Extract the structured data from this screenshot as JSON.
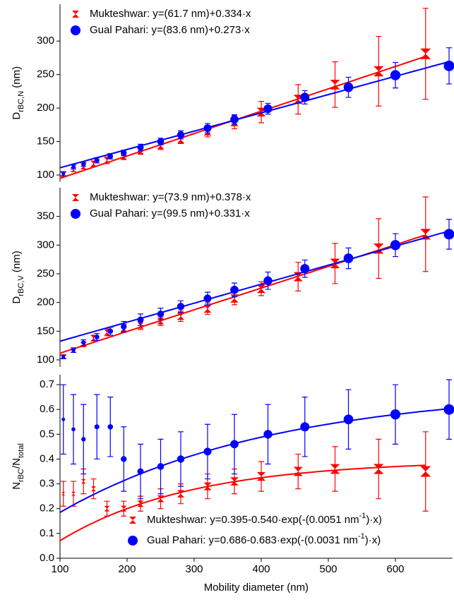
{
  "chart_data": [
    {
      "type": "scatter",
      "ylabel_parts": [
        "D",
        "rBC,N",
        " (nm)"
      ],
      "xlim": [
        100,
        685
      ],
      "ylim": [
        90,
        355
      ],
      "yticks": [
        100,
        150,
        200,
        250,
        300
      ],
      "legend": "upper left",
      "series": [
        {
          "name": "Mukteshwar",
          "legend_parts": [
            "Mukteshwar: y=(61.7 nm)+0.334·x"
          ],
          "color": "#ff0000",
          "marker": "bowtie",
          "fit": {
            "intercept": 61.7,
            "slope": 0.334
          },
          "x": [
            105,
            120,
            135,
            150,
            170,
            195,
            220,
            250,
            280,
            320,
            360,
            400,
            455,
            510,
            575,
            645
          ],
          "values": [
            101,
            108,
            113,
            117,
            122,
            128,
            136,
            144,
            153,
            165,
            179,
            194,
            213,
            235,
            255,
            281
          ],
          "errors": [
            3,
            3,
            4,
            4,
            5,
            5,
            5,
            6,
            6,
            8,
            10,
            16,
            22,
            34,
            52,
            68
          ]
        },
        {
          "name": "Gual Pahari",
          "legend_parts": [
            "Gual Pahari: y=(83.6 nm)+0.273·x"
          ],
          "color": "#0000ff",
          "marker": "circle",
          "fit": {
            "intercept": 83.6,
            "slope": 0.273
          },
          "x": [
            105,
            120,
            135,
            155,
            175,
            195,
            220,
            250,
            280,
            320,
            360,
            410,
            465,
            530,
            600,
            680
          ],
          "values": [
            102,
            112,
            116,
            122,
            128,
            133,
            141,
            150,
            160,
            170,
            183,
            199,
            216,
            231,
            249,
            263
          ],
          "errors": [
            3,
            3,
            3,
            4,
            4,
            4,
            5,
            5,
            6,
            7,
            7,
            8,
            10,
            15,
            19,
            27
          ]
        }
      ]
    },
    {
      "type": "scatter",
      "ylabel_parts": [
        "D",
        "rBC,V",
        " (nm)"
      ],
      "xlim": [
        100,
        685
      ],
      "ylim": [
        88,
        400
      ],
      "yticks": [
        100,
        150,
        200,
        250,
        300,
        350
      ],
      "legend": "upper left",
      "series": [
        {
          "name": "Mukteshwar",
          "legend_parts": [
            "Mukteshwar: y=(73.9 nm)+0.378·x"
          ],
          "color": "#ff0000",
          "marker": "bowtie",
          "fit": {
            "intercept": 73.9,
            "slope": 0.378
          },
          "x": [
            105,
            120,
            135,
            150,
            170,
            195,
            220,
            250,
            280,
            320,
            360,
            400,
            455,
            510,
            575,
            645
          ],
          "values": [
            106,
            116,
            127,
            138,
            148,
            155,
            160,
            168,
            176,
            189,
            207,
            224,
            245,
            268,
            294,
            319
          ],
          "errors": [
            3,
            3,
            4,
            5,
            6,
            7,
            7,
            8,
            9,
            10,
            11,
            12,
            25,
            35,
            52,
            65
          ]
        },
        {
          "name": "Gual Pahari",
          "legend_parts": [
            "Gual Pahari: y=(99.5 nm)+0.331·x"
          ],
          "color": "#0000ff",
          "marker": "circle",
          "fit": {
            "intercept": 99.5,
            "slope": 0.331
          },
          "x": [
            105,
            120,
            135,
            155,
            175,
            195,
            220,
            250,
            280,
            320,
            360,
            410,
            465,
            530,
            600,
            680
          ],
          "values": [
            105,
            117,
            130,
            140,
            150,
            158,
            170,
            180,
            193,
            207,
            222,
            238,
            259,
            277,
            300,
            319
          ],
          "errors": [
            3,
            4,
            5,
            6,
            7,
            9,
            10,
            10,
            10,
            11,
            12,
            15,
            15,
            18,
            20,
            26
          ]
        }
      ]
    },
    {
      "type": "scatter",
      "ylabel_parts": [
        "N",
        "rBC",
        "/N",
        "total"
      ],
      "xlabel": "Mobility diameter (nm)",
      "xlim": [
        100,
        685
      ],
      "ylim": [
        0,
        0.74
      ],
      "xticks": [
        100,
        200,
        300,
        400,
        500,
        600
      ],
      "yticks": [
        {
          "value": 0,
          "label": "0.0"
        },
        0.1,
        0.2,
        0.3,
        0.4,
        0.5,
        0.6,
        0.7
      ],
      "legend": "lower right",
      "series": [
        {
          "name": "Mukteshwar",
          "legend_parts": [
            "Mukteshwar: y=0.395-0.540·exp(-(0.0051 nm",
            "-1",
            ")·x)"
          ],
          "color": "#ff0000",
          "marker": "bowtie",
          "fit": {
            "asymptote": 0.395,
            "amplitude": 0.54,
            "rate": 0.0051
          },
          "x": [
            105,
            120,
            135,
            150,
            170,
            195,
            220,
            250,
            280,
            320,
            360,
            400,
            455,
            510,
            575,
            645
          ],
          "values": [
            0.26,
            0.26,
            0.31,
            0.28,
            0.2,
            0.2,
            0.22,
            0.24,
            0.26,
            0.29,
            0.31,
            0.33,
            0.35,
            0.36,
            0.36,
            0.35
          ],
          "errors": [
            0.05,
            0.05,
            0.05,
            0.04,
            0.03,
            0.03,
            0.03,
            0.04,
            0.04,
            0.05,
            0.05,
            0.06,
            0.07,
            0.09,
            0.12,
            0.16
          ]
        },
        {
          "name": "Gual Pahari",
          "legend_parts": [
            "Gual Pahari: y=0.686-0.683·exp(-(0.0031 nm",
            "-1",
            ")·x)"
          ],
          "color": "#0000ff",
          "marker": "circle",
          "fit": {
            "asymptote": 0.686,
            "amplitude": 0.683,
            "rate": 0.0031
          },
          "x": [
            105,
            120,
            135,
            155,
            175,
            195,
            220,
            250,
            280,
            320,
            360,
            410,
            465,
            530,
            600,
            680
          ],
          "values": [
            0.56,
            0.52,
            0.48,
            0.53,
            0.53,
            0.4,
            0.35,
            0.37,
            0.4,
            0.43,
            0.46,
            0.5,
            0.53,
            0.56,
            0.58,
            0.6
          ],
          "errors": [
            0.14,
            0.14,
            0.14,
            0.13,
            0.12,
            0.13,
            0.11,
            0.11,
            0.11,
            0.11,
            0.12,
            0.12,
            0.12,
            0.12,
            0.12,
            0.12
          ]
        }
      ]
    }
  ]
}
